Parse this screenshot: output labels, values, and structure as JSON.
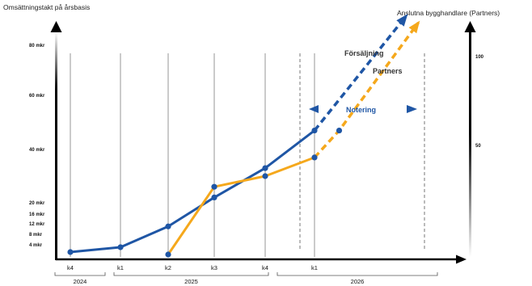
{
  "chart_data": {
    "type": "line",
    "y_title_left": "Omsättningstakt på årsbasis",
    "y_title_right": "Anslutna bygghandlare (Partners)",
    "y_ticks_left": [
      {
        "label": "80 mkr",
        "value": 80
      },
      {
        "label": "60 mkr",
        "value": 60
      },
      {
        "label": "40 mkr",
        "value": 40
      },
      {
        "label": "20 mkr",
        "value": 20
      },
      {
        "label": "16 mkr",
        "value": 16
      },
      {
        "label": "12 mkr",
        "value": 12
      },
      {
        "label": "8 mkr",
        "value": 8
      },
      {
        "label": "4 mkr",
        "value": 4
      }
    ],
    "y_ticks_right": [
      {
        "label": "100",
        "value": 100
      },
      {
        "label": "50",
        "value": 50
      }
    ],
    "x_ticks": [
      "k4",
      "k1",
      "k2",
      "k3",
      "k4",
      "k1"
    ],
    "years": [
      {
        "label": "2024"
      },
      {
        "label": "2025"
      },
      {
        "label": "2026"
      }
    ],
    "series": [
      {
        "color": "#1f56a5",
        "points": [
          {
            "q": 0,
            "value": 1
          },
          {
            "q": 1,
            "value": 3
          },
          {
            "q": 2,
            "value": 11
          },
          {
            "q": 3,
            "value": 22
          },
          {
            "q": 4,
            "value": 33
          },
          {
            "q": 5,
            "value": 47
          }
        ],
        "projected": [
          {
            "q": 5,
            "value": 47
          },
          {
            "q": 6.7,
            "value": 93
          }
        ]
      },
      {
        "color": "#f5a81c",
        "points": [
          {
            "q": 2,
            "value": 0
          },
          {
            "q": 3,
            "value": 26
          },
          {
            "q": 4,
            "value": 30
          },
          {
            "q": 5,
            "value": 37
          }
        ],
        "projected": [
          {
            "q": 5,
            "value": 37
          },
          {
            "q": 5.5,
            "value": 47
          },
          {
            "q": 6.9,
            "value": 90
          }
        ]
      }
    ],
    "annotations": {
      "sales": "Försäljning",
      "partners": "Partners",
      "listing": "Notering"
    }
  }
}
